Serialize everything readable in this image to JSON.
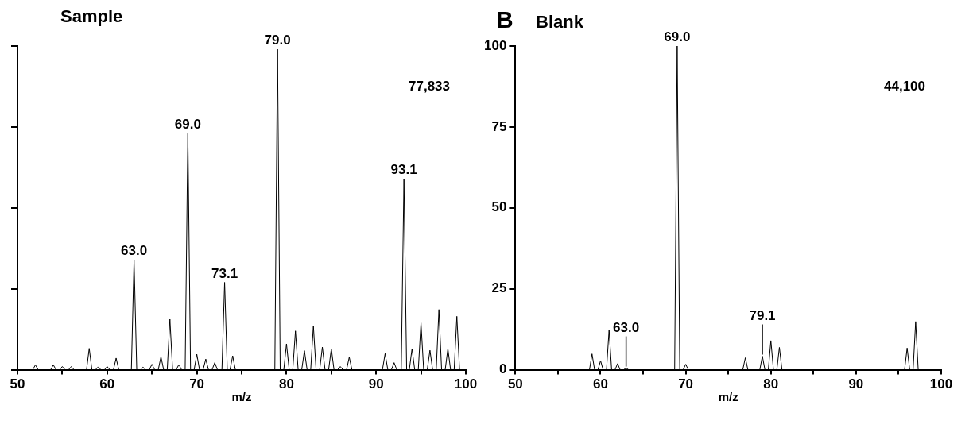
{
  "chart_data": [
    {
      "type": "line",
      "title": "Sample",
      "xlabel": "m/z",
      "grid": false,
      "legend": false,
      "marker": "none",
      "tick_labels": "x",
      "xlim": [
        50,
        100
      ],
      "xticks": [
        50,
        {
          "value": 55,
          "label": null
        },
        60,
        {
          "value": 65,
          "label": null
        },
        70,
        {
          "value": 75,
          "label": null
        },
        80,
        {
          "value": 85,
          "label": null
        },
        90,
        {
          "value": 95,
          "label": null
        },
        100
      ],
      "ylim": [
        0,
        100
      ],
      "yticks": [
        {
          "value": 0,
          "label": null
        },
        {
          "value": 25,
          "label": null
        },
        {
          "value": 50,
          "label": null
        },
        {
          "value": 75,
          "label": null
        },
        {
          "value": 100,
          "label": null
        }
      ],
      "series": [
        {
          "color": "#000000",
          "x": [
            50,
            51.7,
            52,
            52.3,
            53.7,
            54,
            54.3,
            54.7,
            55,
            55.3,
            55.7,
            56,
            56.3,
            57.7,
            58,
            58.3,
            58.7,
            59,
            59.3,
            59.7,
            60,
            60.3,
            60.7,
            61,
            61.3,
            62.7,
            63,
            63.3,
            63.7,
            64,
            64.3,
            64.7,
            65,
            65.3,
            65.7,
            66,
            66.3,
            66.7,
            67,
            67.3,
            67.7,
            68,
            68.3,
            68.7,
            69,
            69.3,
            69.7,
            70,
            70.3,
            70.7,
            71,
            71.3,
            71.7,
            72,
            72.3,
            72.8,
            73.1,
            73.4,
            73.7,
            74,
            74.3,
            78.7,
            79,
            79.3,
            79.7,
            80,
            80.3,
            80.7,
            81,
            81.3,
            81.7,
            82,
            82.3,
            82.7,
            83,
            83.3,
            83.7,
            84,
            84.3,
            84.7,
            85,
            85.3,
            85.7,
            86,
            86.3,
            86.7,
            87,
            87.3,
            90.7,
            91,
            91.3,
            91.7,
            92,
            92.3,
            92.8,
            93.1,
            93.4,
            93.7,
            94,
            94.3,
            94.7,
            95,
            95.3,
            95.7,
            96,
            96.3,
            96.7,
            97,
            97.3,
            97.7,
            98,
            98.3,
            98.7,
            99,
            99.3,
            100
          ],
          "values": [
            0,
            0,
            1.5,
            0,
            0,
            1.5,
            0,
            0,
            1,
            0,
            0,
            1,
            0,
            0,
            6.6,
            0,
            0,
            0.9,
            0,
            0,
            1,
            0,
            0,
            3.6,
            0,
            0,
            34,
            0,
            0,
            0.8,
            0,
            0,
            1.7,
            0,
            0,
            4,
            0,
            0,
            15.6,
            0,
            0,
            1.6,
            0,
            0,
            73,
            0,
            0,
            4.8,
            0,
            0,
            3.3,
            0,
            0,
            2.2,
            0,
            0,
            27,
            0,
            0,
            4.3,
            0,
            0,
            99,
            0,
            0,
            8,
            0,
            0,
            12,
            0,
            0,
            5.9,
            0,
            0,
            13.6,
            0,
            0,
            7,
            0,
            0,
            6.5,
            0,
            0,
            1,
            0,
            0,
            3.9,
            0,
            0,
            5,
            0,
            0,
            2.2,
            0,
            0,
            59,
            0,
            0,
            6.5,
            0,
            0,
            14.5,
            0,
            0,
            6,
            0,
            0,
            18.6,
            0,
            0,
            6.5,
            0,
            0,
            16.5,
            0,
            0
          ]
        }
      ],
      "annotations": [
        {
          "text": "79.0",
          "x": 79,
          "y": 99
        },
        {
          "text": "69.0",
          "x": 69,
          "y": 73
        },
        {
          "text": "63.0",
          "x": 63,
          "y": 34
        },
        {
          "text": "73.1",
          "x": 73.1,
          "y": 27
        },
        {
          "text": "93.1",
          "x": 93.1,
          "y": 59
        },
        "77,833"
      ]
    },
    {
      "type": "line",
      "subtitle": "B",
      "title": "Blank",
      "xlabel": "m/z",
      "grid": false,
      "legend": false,
      "marker": "none",
      "xlim": [
        50,
        100
      ],
      "xticks": [
        50,
        {
          "value": 55,
          "label": null
        },
        60,
        {
          "value": 65,
          "label": null
        },
        70,
        {
          "value": 75,
          "label": null
        },
        80,
        {
          "value": 85,
          "label": null
        },
        90,
        {
          "value": 95,
          "label": null
        },
        100
      ],
      "ylim": [
        0,
        100
      ],
      "yticks": [
        0,
        25,
        50,
        75,
        100
      ],
      "series": [
        {
          "color": "#000000",
          "x": [
            50,
            58.7,
            59,
            59.3,
            59.7,
            60,
            60.3,
            60.7,
            61,
            61.3,
            61.7,
            62,
            62.3,
            62.7,
            63,
            63.3,
            68.7,
            69,
            69.3,
            69.7,
            70,
            70.3,
            76.7,
            77,
            77.3,
            78.7,
            79,
            79.3,
            79.7,
            80,
            80.3,
            80.7,
            81,
            81.3,
            95.7,
            96,
            96.3,
            96.7,
            97,
            97.3,
            100
          ],
          "values": [
            0,
            0,
            4.9,
            0,
            0,
            2.8,
            0,
            0,
            12.3,
            0,
            0,
            1.9,
            0,
            0,
            0.5,
            0,
            0,
            100,
            0,
            0,
            1.7,
            0,
            0,
            3.7,
            0,
            0,
            4.2,
            0,
            0,
            9,
            0,
            0,
            6.9,
            0,
            0,
            6.7,
            0,
            0,
            14.9,
            0,
            0
          ]
        }
      ],
      "annotations": [
        {
          "text": "69.0",
          "x": 69,
          "y": 100
        },
        {
          "text": "63.0",
          "x": 63,
          "y": 0.5
        },
        {
          "text": "79.1",
          "x": 79,
          "y": 4.2
        },
        "44,100"
      ]
    }
  ]
}
